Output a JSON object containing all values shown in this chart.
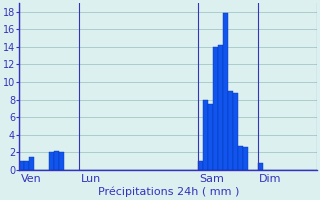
{
  "xlabel": "Précipitations 24h ( mm )",
  "background_color": "#ddf0f0",
  "grid_color": "#aacccc",
  "bar_color": "#1155ee",
  "bar_edge_color": "#0033aa",
  "ylim": [
    0,
    19
  ],
  "yticks": [
    0,
    2,
    4,
    6,
    8,
    10,
    12,
    14,
    16,
    18
  ],
  "day_labels": [
    "Ven",
    "Lun",
    "Sam",
    "Dim"
  ],
  "axis_color": "#3333bb",
  "tick_color": "#3333bb",
  "label_fontsize": 8,
  "tick_fontsize": 7,
  "n_per_day": 12,
  "values": [
    1.0,
    1.0,
    1.5,
    0.0,
    0.0,
    0.0,
    2.0,
    2.2,
    2.0,
    0.0,
    0.0,
    0.0,
    0.0,
    0.0,
    0.0,
    0.0,
    0.0,
    0.0,
    0.0,
    0.0,
    0.0,
    0.0,
    0.0,
    0.0,
    0.0,
    0.0,
    0.0,
    0.0,
    0.0,
    0.0,
    0.0,
    0.0,
    0.0,
    0.0,
    0.0,
    0.0,
    1.0,
    8.0,
    7.5,
    14.0,
    14.2,
    17.8,
    9.0,
    8.8,
    2.7,
    2.6,
    0.0,
    0.0,
    0.8,
    0.0,
    0.0,
    0.0,
    0.0,
    0.0,
    0.0,
    0.0,
    0.0,
    0.0,
    0.0,
    0.0
  ]
}
